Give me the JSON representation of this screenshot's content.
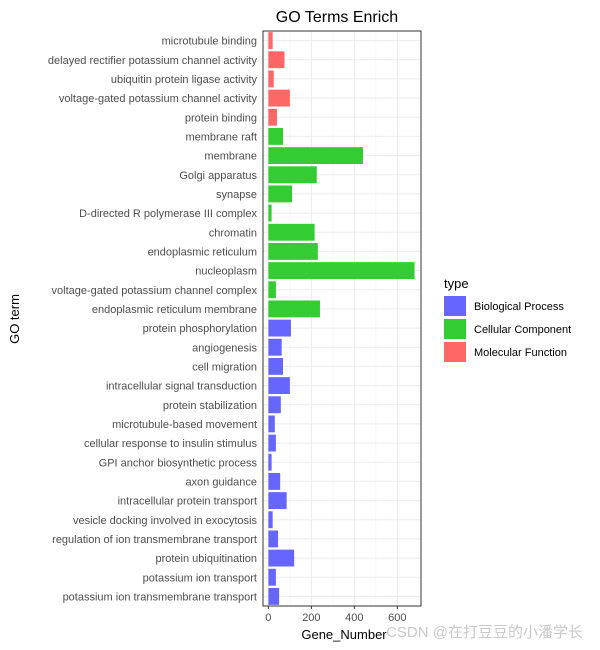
{
  "chart_data": {
    "type": "bar",
    "orientation": "horizontal",
    "title": "GO Terms Enrich",
    "xlabel": "Gene_Number",
    "ylabel": "GO term",
    "xlim": [
      -25,
      710
    ],
    "xticks": [
      0,
      200,
      400,
      600
    ],
    "grid": true,
    "legend": {
      "title": "type",
      "position": "right",
      "entries": [
        {
          "name": "Biological Process",
          "color": "#6666ff"
        },
        {
          "name": "Cellular Component",
          "color": "#33cc33"
        },
        {
          "name": "Molecular Function",
          "color": "#ff6666"
        }
      ]
    },
    "categories": [
      "microtubule binding",
      "delayed rectifier potassium channel activity",
      "ubiquitin protein ligase activity",
      "voltage-gated potassium channel activity",
      "protein binding",
      "membrane raft",
      "membrane",
      "Golgi apparatus",
      "synapse",
      "D-directed R polymerase III complex",
      "chromatin",
      "endoplasmic reticulum",
      "nucleoplasm",
      "voltage-gated potassium channel complex",
      "endoplasmic reticulum membrane",
      "protein phosphorylation",
      "angiogenesis",
      "cell migration",
      "intracellular signal transduction",
      "protein stabilization",
      "microtubule-based movement",
      "cellular response to insulin stimulus",
      "GPI anchor biosynthetic process",
      "axon guidance",
      "intracellular protein transport",
      "vesicle docking involved in exocytosis",
      "regulation of ion transmembrane transport",
      "protein ubiquitination",
      "potassium ion transport",
      "potassium ion transmembrane transport"
    ],
    "values": [
      20,
      75,
      25,
      100,
      40,
      68,
      440,
      225,
      110,
      15,
      215,
      230,
      680,
      35,
      240,
      105,
      62,
      68,
      100,
      58,
      30,
      35,
      15,
      55,
      85,
      20,
      45,
      120,
      35,
      50
    ],
    "types": [
      "Molecular Function",
      "Molecular Function",
      "Molecular Function",
      "Molecular Function",
      "Molecular Function",
      "Cellular Component",
      "Cellular Component",
      "Cellular Component",
      "Cellular Component",
      "Cellular Component",
      "Cellular Component",
      "Cellular Component",
      "Cellular Component",
      "Cellular Component",
      "Cellular Component",
      "Biological Process",
      "Biological Process",
      "Biological Process",
      "Biological Process",
      "Biological Process",
      "Biological Process",
      "Biological Process",
      "Biological Process",
      "Biological Process",
      "Biological Process",
      "Biological Process",
      "Biological Process",
      "Biological Process",
      "Biological Process",
      "Biological Process"
    ]
  },
  "watermark": "CSDN @在打豆豆的小潘学长"
}
